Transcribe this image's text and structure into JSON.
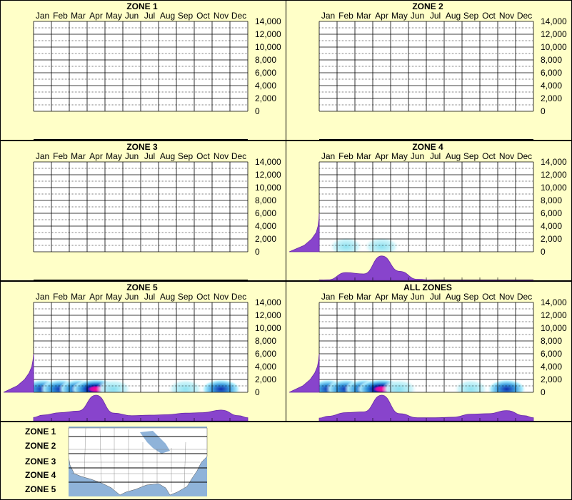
{
  "chart_data": {
    "type": "heatmap",
    "months": [
      "Jan",
      "Feb",
      "Mar",
      "Apr",
      "May",
      "Jun",
      "Jul",
      "Aug",
      "Sep",
      "Oct",
      "Nov",
      "Dec"
    ],
    "y_ticks": [
      "14,000",
      "12,000",
      "10,000",
      "8,000",
      "6,000",
      "4,000",
      "2,000",
      "0"
    ],
    "ylim": [
      0,
      14000
    ],
    "panels": [
      {
        "title": "ZONE 1",
        "month_profile": [
          0,
          0,
          0,
          0,
          0,
          0,
          0,
          0,
          0,
          0,
          0,
          0
        ],
        "elev_profile": [
          0,
          0,
          0,
          0,
          0,
          0,
          0
        ],
        "heat": []
      },
      {
        "title": "ZONE 2",
        "month_profile": [
          0,
          0,
          0,
          0,
          0,
          0,
          0,
          0,
          0,
          0,
          0,
          0
        ],
        "elev_profile": [
          0,
          0,
          0,
          0,
          0,
          0,
          0
        ],
        "heat": []
      },
      {
        "title": "ZONE 3",
        "month_profile": [
          0,
          0,
          0,
          0,
          0,
          0,
          0,
          0,
          0,
          0,
          0,
          0
        ],
        "elev_profile": [
          0,
          0,
          0,
          0,
          0,
          0,
          0
        ],
        "heat": []
      },
      {
        "title": "ZONE 4",
        "month_profile": [
          0.02,
          0.3,
          0.25,
          0.95,
          0.35,
          0.04,
          0,
          0,
          0,
          0,
          0,
          0
        ],
        "elev_profile": [
          1.0,
          0.5,
          0.25,
          0.1,
          0.04,
          0.01,
          0
        ],
        "heat": [
          {
            "month": 1.5,
            "elev": 800,
            "intensity": 0.25
          },
          {
            "month": 3.5,
            "elev": 800,
            "intensity": 0.35
          }
        ]
      },
      {
        "title": "ZONE 5",
        "month_profile": [
          0.22,
          0.32,
          0.38,
          1.0,
          0.3,
          0.2,
          0.22,
          0.24,
          0.3,
          0.32,
          0.42,
          0.2
        ],
        "elev_profile": [
          1.0,
          0.55,
          0.3,
          0.15,
          0.06,
          0.02,
          0
        ],
        "heat": [
          {
            "month": 0.5,
            "elev": 500,
            "intensity": 0.5
          },
          {
            "month": 1.5,
            "elev": 500,
            "intensity": 0.55
          },
          {
            "month": 2.5,
            "elev": 500,
            "intensity": 0.5
          },
          {
            "month": 3.5,
            "elev": 500,
            "intensity": 1.0
          },
          {
            "month": 4.5,
            "elev": 500,
            "intensity": 0.35
          },
          {
            "month": 8.5,
            "elev": 500,
            "intensity": 0.35
          },
          {
            "month": 10.5,
            "elev": 500,
            "intensity": 0.55
          }
        ]
      },
      {
        "title": "ALL ZONES",
        "month_profile": [
          0.18,
          0.32,
          0.35,
          1.0,
          0.28,
          0.12,
          0.12,
          0.14,
          0.26,
          0.28,
          0.4,
          0.2
        ],
        "elev_profile": [
          1.0,
          0.55,
          0.3,
          0.15,
          0.06,
          0.02,
          0
        ],
        "heat": [
          {
            "month": 0.5,
            "elev": 500,
            "intensity": 0.45
          },
          {
            "month": 1.5,
            "elev": 500,
            "intensity": 0.55
          },
          {
            "month": 2.5,
            "elev": 500,
            "intensity": 0.5
          },
          {
            "month": 3.5,
            "elev": 500,
            "intensity": 1.0
          },
          {
            "month": 4.5,
            "elev": 500,
            "intensity": 0.35
          },
          {
            "month": 8.5,
            "elev": 500,
            "intensity": 0.3
          },
          {
            "month": 10.5,
            "elev": 500,
            "intensity": 0.5
          }
        ]
      }
    ]
  },
  "legend": {
    "zones": [
      "ZONE 1",
      "ZONE 2",
      "ZONE 3",
      "ZONE 4",
      "ZONE 5"
    ]
  },
  "colors": {
    "background": "#ffffc8",
    "profile_fill": "#8844cc",
    "heat_low": "#aaeeff",
    "heat_mid": "#0033aa",
    "heat_high": "#ff0088",
    "map_water": "#8fb3d9",
    "map_land": "#ffffff"
  }
}
